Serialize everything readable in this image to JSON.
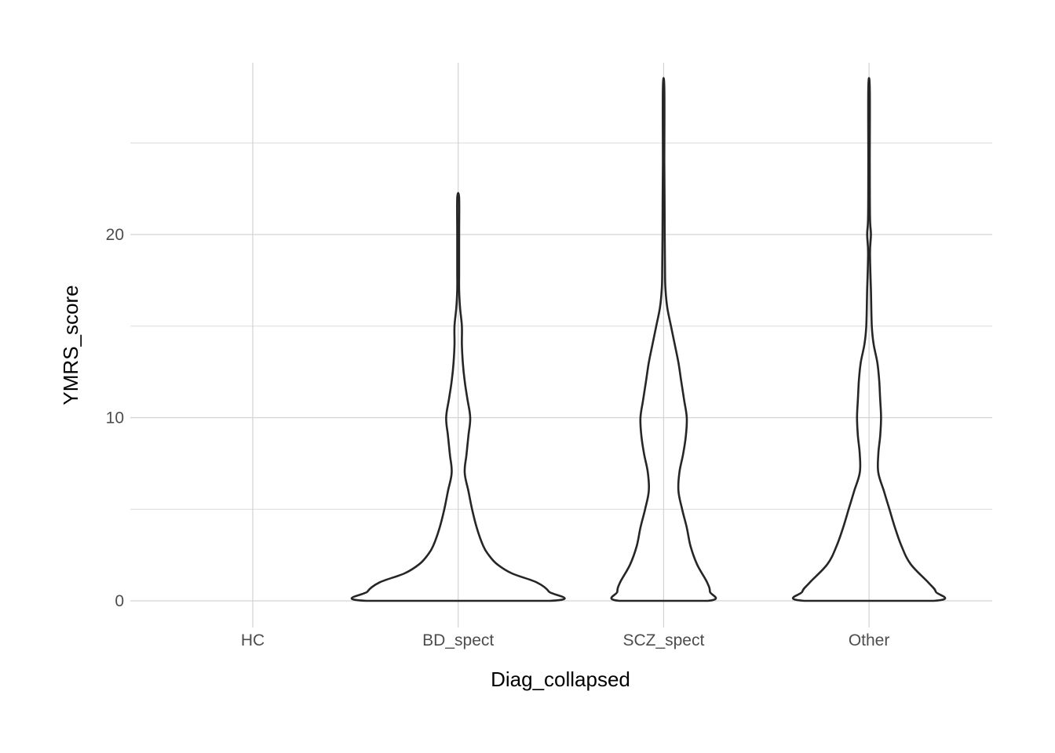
{
  "chart_data": {
    "type": "violin",
    "xlabel": "Diag_collapsed",
    "ylabel": "YMRS_score",
    "categories": [
      "HC",
      "BD_spect",
      "SCZ_spect",
      "Other"
    ],
    "y_ticks": [
      0,
      10,
      20
    ],
    "y_minor_ticks": [
      5,
      15,
      25
    ],
    "ylim": [
      -1.4,
      29.3
    ],
    "grid": true,
    "violins": [
      {
        "category": "HC",
        "profile": []
      },
      {
        "category": "BD_spect",
        "profile": [
          [
            0,
            0.99
          ],
          [
            0.5,
            0.98
          ],
          [
            1,
            0.85
          ],
          [
            1.5,
            0.58
          ],
          [
            2,
            0.42
          ],
          [
            2.5,
            0.33
          ],
          [
            3,
            0.27
          ],
          [
            4,
            0.2
          ],
          [
            5,
            0.15
          ],
          [
            6,
            0.11
          ],
          [
            7,
            0.07
          ],
          [
            8,
            0.09
          ],
          [
            9,
            0.11
          ],
          [
            10,
            0.13
          ],
          [
            11,
            0.1
          ],
          [
            12,
            0.07
          ],
          [
            13,
            0.05
          ],
          [
            14,
            0.04
          ],
          [
            15,
            0.04
          ],
          [
            16,
            0.02
          ],
          [
            17,
            0.01
          ],
          [
            18,
            0.01
          ],
          [
            20,
            0.01
          ],
          [
            22,
            0.01
          ]
        ]
      },
      {
        "category": "SCZ_spect",
        "profile": [
          [
            0,
            0.48
          ],
          [
            0.5,
            0.5
          ],
          [
            1,
            0.47
          ],
          [
            2,
            0.36
          ],
          [
            3,
            0.29
          ],
          [
            4,
            0.25
          ],
          [
            5,
            0.2
          ],
          [
            6,
            0.16
          ],
          [
            7,
            0.17
          ],
          [
            8,
            0.21
          ],
          [
            9,
            0.24
          ],
          [
            10,
            0.25
          ],
          [
            11,
            0.22
          ],
          [
            12,
            0.19
          ],
          [
            13,
            0.16
          ],
          [
            14,
            0.12
          ],
          [
            15,
            0.08
          ],
          [
            16,
            0.04
          ],
          [
            17,
            0.02
          ],
          [
            18,
            0.015
          ],
          [
            20,
            0.012
          ],
          [
            22,
            0.01
          ],
          [
            24,
            0.008
          ],
          [
            28,
            0.008
          ]
        ]
      },
      {
        "category": "Other",
        "profile": [
          [
            0,
            0.7
          ],
          [
            0.5,
            0.72
          ],
          [
            1,
            0.64
          ],
          [
            2,
            0.45
          ],
          [
            3,
            0.35
          ],
          [
            4,
            0.28
          ],
          [
            5,
            0.22
          ],
          [
            6,
            0.16
          ],
          [
            7,
            0.1
          ],
          [
            8,
            0.1
          ],
          [
            9,
            0.12
          ],
          [
            10,
            0.13
          ],
          [
            11,
            0.12
          ],
          [
            12,
            0.11
          ],
          [
            13,
            0.09
          ],
          [
            14,
            0.05
          ],
          [
            15,
            0.03
          ],
          [
            17,
            0.02
          ],
          [
            19,
            0.01
          ],
          [
            20,
            0.02
          ],
          [
            21,
            0.01
          ],
          [
            24,
            0.008
          ],
          [
            28,
            0.008
          ]
        ]
      }
    ]
  }
}
